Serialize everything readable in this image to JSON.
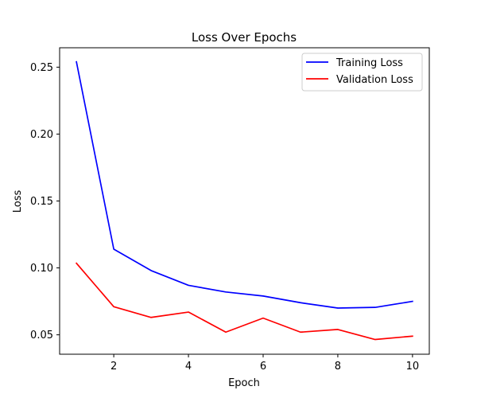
{
  "chart_data": {
    "type": "line",
    "title": "Loss Over Epochs",
    "xlabel": "Epoch",
    "ylabel": "Loss",
    "x": [
      1,
      2,
      3,
      4,
      5,
      6,
      7,
      8,
      9,
      10
    ],
    "xlim": [
      0.55,
      10.45
    ],
    "ylim": [
      0.0355,
      0.2645
    ],
    "xticks": [
      2,
      4,
      6,
      8,
      10
    ],
    "xtick_labels": [
      "2",
      "4",
      "6",
      "8",
      "10"
    ],
    "yticks": [
      0.05,
      0.1,
      0.15,
      0.2,
      0.25
    ],
    "ytick_labels": [
      "0.05",
      "0.10",
      "0.15",
      "0.20",
      "0.25"
    ],
    "grid": false,
    "legend_position": "top-right",
    "series": [
      {
        "name": "Training Loss",
        "color": "#0000ff",
        "values": [
          0.254,
          0.114,
          0.098,
          0.087,
          0.082,
          0.079,
          0.074,
          0.07,
          0.0705,
          0.075
        ]
      },
      {
        "name": "Validation Loss",
        "color": "#ff0000",
        "values": [
          0.1035,
          0.071,
          0.063,
          0.067,
          0.052,
          0.0625,
          0.052,
          0.054,
          0.0465,
          0.049
        ]
      }
    ]
  }
}
